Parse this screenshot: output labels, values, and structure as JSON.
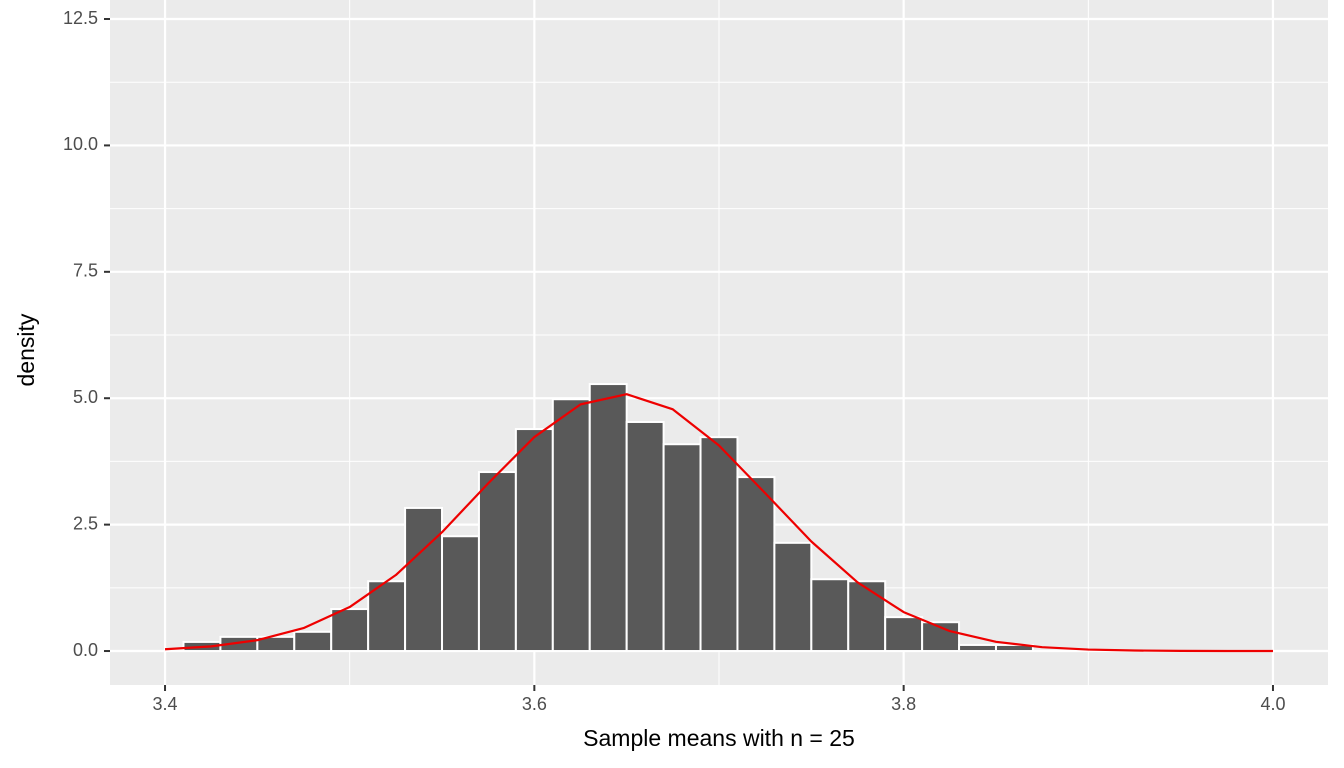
{
  "chart_data": {
    "type": "histogram",
    "x_label": "Sample means with n = 25",
    "y_label": "density",
    "bins": [
      3.41,
      3.43,
      3.45,
      3.47,
      3.49,
      3.51,
      3.53,
      3.55,
      3.57,
      3.59,
      3.61,
      3.63,
      3.65,
      3.67,
      3.69,
      3.71,
      3.73,
      3.75,
      3.77,
      3.79,
      3.81,
      3.83,
      3.85,
      3.87
    ],
    "values": [
      0.18,
      0.28,
      0.28,
      0.38,
      0.83,
      1.38,
      2.83,
      2.27,
      3.54,
      4.39,
      4.98,
      5.28,
      4.53,
      4.09,
      4.23,
      3.44,
      2.14,
      1.42,
      1.38,
      0.67,
      0.57,
      0.12,
      0.12
    ],
    "color": "#595959",
    "curve": {
      "color": "#ee0000",
      "x": [
        3.4,
        3.425,
        3.45,
        3.475,
        3.5,
        3.525,
        3.55,
        3.575,
        3.6,
        3.625,
        3.65,
        3.675,
        3.7,
        3.725,
        3.75,
        3.775,
        3.8,
        3.825,
        3.85,
        3.875,
        3.9,
        3.925,
        3.95,
        3.975,
        4.0
      ],
      "values": [
        0.035,
        0.092,
        0.215,
        0.454,
        0.87,
        1.503,
        2.35,
        3.316,
        4.232,
        4.878,
        5.079,
        4.78,
        4.064,
        3.122,
        2.166,
        1.359,
        0.77,
        0.394,
        0.182,
        0.076,
        0.029,
        0.01,
        0.003,
        0.001,
        0.0
      ]
    },
    "xlim": [
      3.3702,
      4.0298
    ],
    "ylim": [
      -0.672,
      12.876
    ],
    "xticks": [
      3.4,
      3.6,
      3.8,
      {
        "value": 4.0,
        "label": "4.0"
      }
    ],
    "yticks": [
      {
        "value": 0,
        "label": "0.0"
      },
      2.5,
      {
        "value": 5,
        "label": "5.0"
      },
      7.5,
      {
        "value": 10,
        "label": "10.0"
      },
      12.5
    ],
    "grid": true
  }
}
